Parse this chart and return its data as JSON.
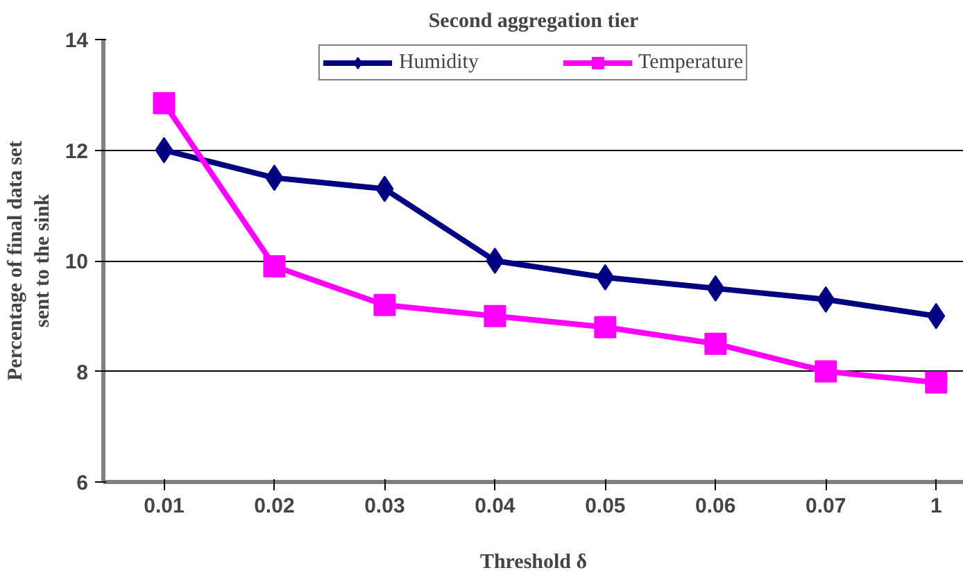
{
  "chart_data": {
    "type": "line",
    "title": "Second aggregation tier",
    "xlabel": "Threshold δ",
    "ylabel": "Percentage of final data set\nsent to the sink",
    "categories": [
      "0.01",
      "0.02",
      "0.03",
      "0.04",
      "0.05",
      "0.06",
      "0.07",
      "1"
    ],
    "series": [
      {
        "name": "Humidity",
        "color": "#000080",
        "marker": "diamond",
        "values": [
          12.0,
          11.5,
          11.3,
          10.0,
          9.7,
          9.5,
          9.3,
          9.0
        ]
      },
      {
        "name": "Temperature",
        "color": "#ff00ff",
        "marker": "square",
        "values": [
          12.85,
          9.9,
          9.2,
          9.0,
          8.8,
          8.5,
          8.0,
          7.8
        ]
      }
    ],
    "ylim": [
      6,
      14
    ],
    "yticks": [
      6,
      8,
      10,
      12,
      14
    ],
    "grid": "y",
    "legend": "top",
    "line_style": "solid"
  }
}
